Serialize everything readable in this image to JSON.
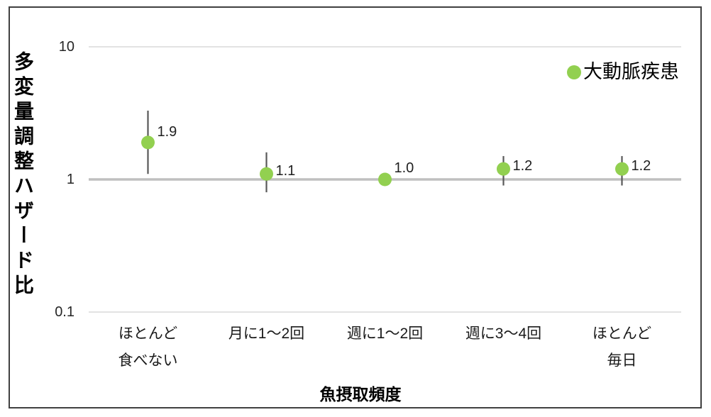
{
  "frame": {
    "border_color": "#404040",
    "background": "#ffffff"
  },
  "chart_data": {
    "type": "scatter",
    "title": "",
    "xlabel": "魚摂取頻度",
    "ylabel": "多変量調整ハザード比",
    "y_scale": "log",
    "ylim": [
      0.1,
      10
    ],
    "y_ticks": [
      {
        "value": 10,
        "label": "10"
      },
      {
        "value": 1,
        "label": "1"
      },
      {
        "value": 0.1,
        "label": "0.1"
      }
    ],
    "grid": "horizontal",
    "legend_position": "top-right",
    "categories": [
      "ほとんど\n食べない",
      "月に1〜2回",
      "週に1〜2回",
      "週に3〜4回",
      "ほとんど\n毎日"
    ],
    "series": [
      {
        "name": "大動脈疾患",
        "color": "#92d050",
        "values": [
          1.9,
          1.1,
          1.0,
          1.2,
          1.2
        ],
        "data_labels": [
          "1.9",
          "1.1",
          "1.0",
          "1.2",
          "1.2"
        ],
        "error_low": [
          1.1,
          0.8,
          1.0,
          0.9,
          0.9
        ],
        "error_high": [
          3.3,
          1.6,
          1.0,
          1.5,
          1.5
        ]
      }
    ],
    "style": {
      "major_gridline_color": "#bfbfbf",
      "minor_gridline_color": "#d9d9d9",
      "error_bar_color": "#595959"
    }
  }
}
